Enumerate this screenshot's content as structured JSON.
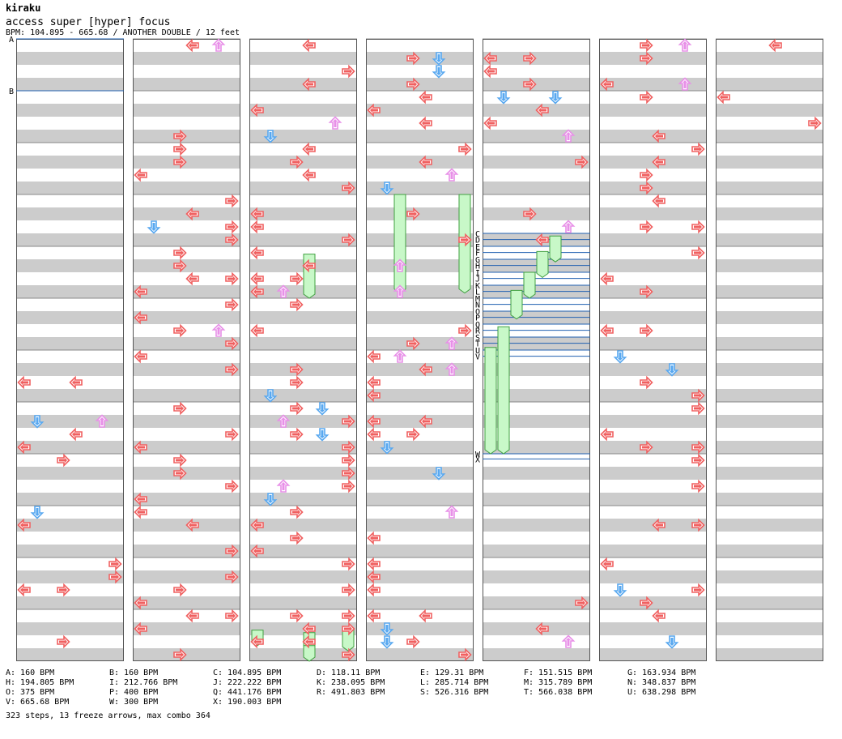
{
  "header": {
    "artist": "kiraku",
    "title": "access super [hyper] focus",
    "meta": "BPM: 104.895 - 665.68 / ANOTHER DOUBLE / 12 feet"
  },
  "colors": {
    "left_right_arrow": "#f06060",
    "down_arrow": "#58a8f0",
    "up_arrow": "#e890e8",
    "freeze": "#c8f8c8",
    "freeze_border": "#40a040",
    "band": "#cccccc",
    "bpm_line": "#2060b0"
  },
  "icons": {
    "left": "left-arrow-icon",
    "down": "down-arrow-icon",
    "up": "up-arrow-icon",
    "right": "right-arrow-icon"
  },
  "bpm_markers": [
    {
      "label": "A",
      "column": 1,
      "measure": 0
    },
    {
      "label": "B",
      "column": 1,
      "measure": 1
    },
    {
      "label": "C",
      "column": 5,
      "measure": 3.75
    },
    {
      "label": "D",
      "column": 5,
      "measure": 3.87
    },
    {
      "label": "E",
      "column": 5,
      "measure": 4.0
    },
    {
      "label": "F",
      "column": 5,
      "measure": 4.12
    },
    {
      "label": "G",
      "column": 5,
      "measure": 4.25
    },
    {
      "label": "H",
      "column": 5,
      "measure": 4.37
    },
    {
      "label": "I",
      "column": 5,
      "measure": 4.5
    },
    {
      "label": "J",
      "column": 5,
      "measure": 4.62
    },
    {
      "label": "K",
      "column": 5,
      "measure": 4.75
    },
    {
      "label": "L",
      "column": 5,
      "measure": 4.87
    },
    {
      "label": "M",
      "column": 5,
      "measure": 5.0
    },
    {
      "label": "N",
      "column": 5,
      "measure": 5.12
    },
    {
      "label": "O",
      "column": 5,
      "measure": 5.25
    },
    {
      "label": "P",
      "column": 5,
      "measure": 5.37
    },
    {
      "label": "Q",
      "column": 5,
      "measure": 5.5
    },
    {
      "label": "R",
      "column": 5,
      "measure": 5.62
    },
    {
      "label": "S",
      "column": 5,
      "measure": 5.75
    },
    {
      "label": "T",
      "column": 5,
      "measure": 5.87
    },
    {
      "label": "U",
      "column": 5,
      "measure": 6.0
    },
    {
      "label": "V",
      "column": 5,
      "measure": 6.12
    },
    {
      "label": "W",
      "column": 5,
      "measure": 8.0
    },
    {
      "label": "X",
      "column": 5,
      "measure": 8.1
    }
  ],
  "bpm_legend": [
    [
      "A: 160 BPM",
      "B: 160 BPM",
      "C: 104.895 BPM",
      "D: 118.11 BPM",
      "E: 129.31 BPM",
      "F: 151.515 BPM",
      "G: 163.934 BPM"
    ],
    [
      "H: 194.805 BPM",
      "I: 212.766 BPM",
      "J: 222.222 BPM",
      "K: 238.095 BPM",
      "L: 285.714 BPM",
      "M: 315.789 BPM",
      "N: 348.837 BPM"
    ],
    [
      "O: 375 BPM",
      "P: 400 BPM",
      "Q: 441.176 BPM",
      "R: 491.803 BPM",
      "S: 526.316 BPM",
      "T: 566.038 BPM",
      "U: 638.298 BPM"
    ],
    [
      "V: 665.68 BPM",
      "W: 300 BPM",
      "X: 190.003 BPM"
    ]
  ],
  "summary": "323 steps, 13 freeze arrows, max combo 364"
}
